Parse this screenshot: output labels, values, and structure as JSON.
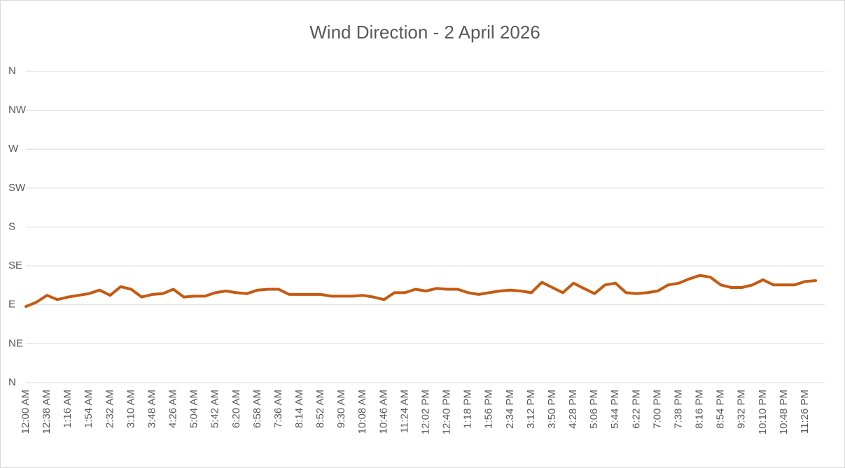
{
  "chart_data": {
    "type": "line",
    "title": "Wind Direction - 2 April 2026",
    "categories": [
      "12:00 AM",
      null,
      "12:38 AM",
      null,
      "1:16 AM",
      null,
      "1:54 AM",
      null,
      "2:32 AM",
      null,
      "3:10 AM",
      null,
      "3:48 AM",
      null,
      "4:26 AM",
      null,
      "5:04 AM",
      null,
      "5:42 AM",
      null,
      "6:20 AM",
      null,
      "6:58 AM",
      null,
      "7:36 AM",
      null,
      "8:14 AM",
      null,
      "8:52 AM",
      null,
      "9:30 AM",
      null,
      "10:08 AM",
      null,
      "10:46 AM",
      null,
      "11:24 AM",
      null,
      "12:02 PM",
      null,
      "12:40 PM",
      null,
      "1:18 PM",
      null,
      "1:56 PM",
      null,
      "2:34 PM",
      null,
      "3:12 PM",
      null,
      "3:50 PM",
      null,
      "4:28 PM",
      null,
      "5:06 PM",
      null,
      "5:44 PM",
      null,
      "6:22 PM",
      null,
      "7:00 PM",
      null,
      "7:38 PM",
      null,
      "8:16 PM",
      null,
      "8:54 PM",
      null,
      "9:32 PM",
      null,
      "10:10 PM",
      null,
      "10:48 PM",
      null,
      "11:26 PM",
      null
    ],
    "series": [
      {
        "name": "Wind Direction",
        "color": "#c55a11",
        "values": [
          88,
          93,
          101,
          96,
          99,
          101,
          103,
          107,
          101,
          111,
          108,
          99,
          102,
          103,
          108,
          99,
          100,
          100,
          104,
          106,
          104,
          103,
          107,
          108,
          108,
          102,
          102,
          102,
          102,
          100,
          100,
          100,
          101,
          99,
          96,
          104,
          104,
          108,
          106,
          109,
          108,
          108,
          104,
          102,
          104,
          106,
          107,
          106,
          104,
          116,
          110,
          104,
          115,
          109,
          103,
          113,
          115,
          104,
          103,
          104,
          106,
          113,
          115,
          120,
          124,
          122,
          113,
          110,
          110,
          113,
          119,
          113,
          113,
          113,
          117,
          118
        ]
      }
    ],
    "ylim": [
      0,
      360
    ],
    "yticks": [
      {
        "value": 0,
        "label": "N"
      },
      {
        "value": 45,
        "label": "NE"
      },
      {
        "value": 90,
        "label": "E"
      },
      {
        "value": 135,
        "label": "SE"
      },
      {
        "value": 180,
        "label": "S"
      },
      {
        "value": 225,
        "label": "SW"
      },
      {
        "value": 270,
        "label": "W"
      },
      {
        "value": 315,
        "label": "NW"
      },
      {
        "value": 360,
        "label": "N"
      }
    ],
    "grid": true
  }
}
